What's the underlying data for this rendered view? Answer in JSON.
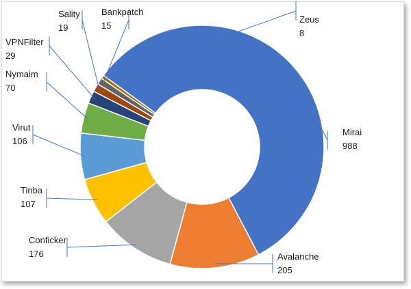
{
  "chart_data": {
    "type": "pie",
    "title": "",
    "donut": true,
    "legend": "none",
    "categories": [
      "Mirai",
      "Avalanche",
      "Conficker",
      "Tinba",
      "Virut",
      "Nymaim",
      "VPNFilter",
      "Sality",
      "Bankpatch",
      "Zeus"
    ],
    "values": [
      988,
      205,
      176,
      107,
      106,
      70,
      29,
      19,
      15,
      8
    ],
    "value_labels": [
      "988",
      "205",
      "176",
      "107",
      "106",
      "70",
      "29",
      "19",
      "15",
      "8"
    ],
    "colors": [
      "#4472C4",
      "#ED7D31",
      "#A5A5A5",
      "#FFC000",
      "#5B9BD5",
      "#70AD47",
      "#264478",
      "#9E480E",
      "#636363",
      "#997300"
    ]
  }
}
